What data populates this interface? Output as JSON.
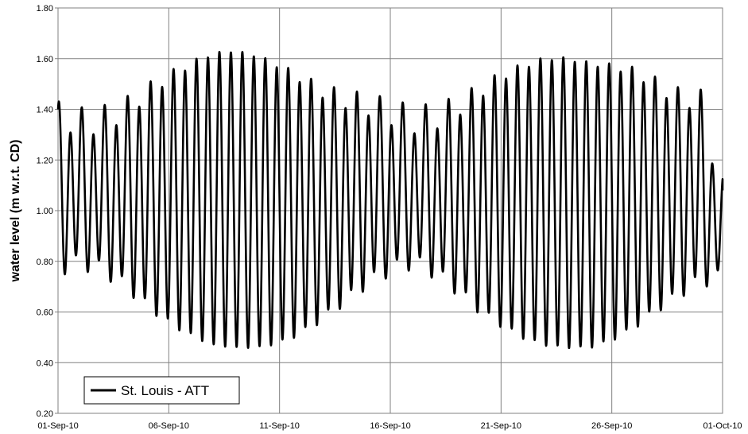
{
  "chart_data": {
    "type": "line",
    "title": "",
    "xlabel": "",
    "ylabel": "water level (m w.r.t. CD)",
    "x_range": [
      "01-Sep-10",
      "01-Oct-10"
    ],
    "xlim": [
      "01-Sep-10",
      "01-Oct-10"
    ],
    "ylim": [
      0.2,
      1.8
    ],
    "y_ticks": [
      "0.20",
      "0.40",
      "0.60",
      "0.80",
      "1.00",
      "1.20",
      "1.40",
      "1.60",
      "1.80"
    ],
    "x_ticks": [
      "01-Sep-10",
      "06-Sep-10",
      "11-Sep-10",
      "16-Sep-10",
      "21-Sep-10",
      "26-Sep-10",
      "01-Oct-10"
    ],
    "grid": true,
    "legend_position": "bottom-left",
    "series": [
      {
        "name": "St. Louis - ATT",
        "color": "#000000",
        "sampling_interval_hours": 1,
        "approx_extrema": [
          {
            "x": "01-Sep-10",
            "high": 1.38,
            "low": 0.77
          },
          {
            "x": "02-Sep-10",
            "high": 1.35,
            "low": 0.8
          },
          {
            "x": "03-Sep-10",
            "high": 1.36,
            "low": 0.77
          },
          {
            "x": "04-Sep-10",
            "high": 1.4,
            "low": 0.71
          },
          {
            "x": "05-Sep-10",
            "high": 1.47,
            "low": 0.63
          },
          {
            "x": "06-Sep-10",
            "high": 1.53,
            "low": 0.56
          },
          {
            "x": "07-Sep-10",
            "high": 1.58,
            "low": 0.51
          },
          {
            "x": "08-Sep-10",
            "high": 1.62,
            "low": 0.47
          },
          {
            "x": "09-Sep-10",
            "high": 1.63,
            "low": 0.46
          },
          {
            "x": "10-Sep-10",
            "high": 1.61,
            "low": 0.46
          },
          {
            "x": "11-Sep-10",
            "high": 1.57,
            "low": 0.48
          },
          {
            "x": "12-Sep-10",
            "high": 1.52,
            "low": 0.52
          },
          {
            "x": "13-Sep-10",
            "high": 1.47,
            "low": 0.58
          },
          {
            "x": "14-Sep-10",
            "high": 1.44,
            "low": 0.65
          },
          {
            "x": "15-Sep-10",
            "high": 1.42,
            "low": 0.72
          },
          {
            "x": "16-Sep-10",
            "high": 1.39,
            "low": 0.77
          },
          {
            "x": "17-Sep-10",
            "high": 1.36,
            "low": 0.8
          },
          {
            "x": "18-Sep-10",
            "high": 1.37,
            "low": 0.76
          },
          {
            "x": "19-Sep-10",
            "high": 1.41,
            "low": 0.69
          },
          {
            "x": "20-Sep-10",
            "high": 1.47,
            "low": 0.61
          },
          {
            "x": "21-Sep-10",
            "high": 1.53,
            "low": 0.55
          },
          {
            "x": "22-Sep-10",
            "high": 1.57,
            "low": 0.5
          },
          {
            "x": "23-Sep-10",
            "high": 1.6,
            "low": 0.47
          },
          {
            "x": "24-Sep-10",
            "high": 1.6,
            "low": 0.46
          },
          {
            "x": "25-Sep-10",
            "high": 1.58,
            "low": 0.46
          },
          {
            "x": "26-Sep-10",
            "high": 1.57,
            "low": 0.49
          },
          {
            "x": "27-Sep-10",
            "high": 1.55,
            "low": 0.54
          },
          {
            "x": "28-Sep-10",
            "high": 1.5,
            "low": 0.61
          },
          {
            "x": "29-Sep-10",
            "high": 1.45,
            "low": 0.67
          },
          {
            "x": "30-Sep-10",
            "high": 1.44,
            "low": 0.73
          },
          {
            "x": "01-Oct-10",
            "high": 1.08,
            "low": 0.73
          }
        ]
      }
    ]
  }
}
